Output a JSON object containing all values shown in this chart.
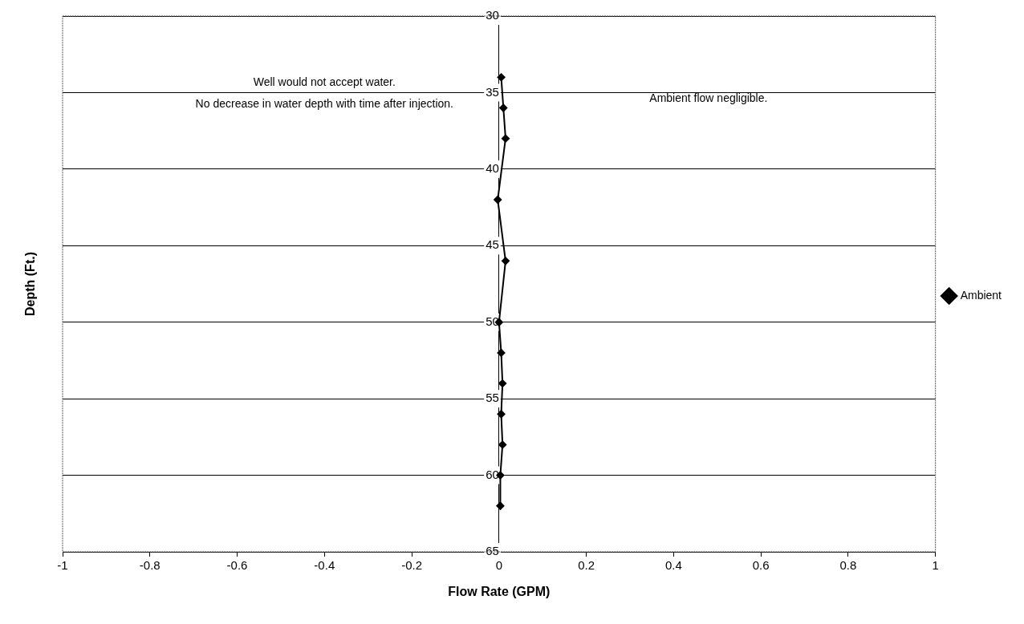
{
  "chart_data": {
    "type": "line",
    "xlabel": "Flow Rate (GPM)",
    "ylabel": "Depth (Ft.)",
    "series": [
      {
        "name": "Ambient",
        "color": "#000000",
        "x": [
          0.005,
          0.01,
          0.015,
          -0.003,
          0.015,
          0,
          0.005,
          0.008,
          0.005,
          0.008,
          0.003,
          0.003
        ],
        "values": [
          34,
          36,
          38,
          42,
          46,
          50,
          52,
          54,
          56,
          58,
          60,
          62
        ]
      }
    ],
    "xlim": [
      -1,
      1
    ],
    "xticks": [
      -1,
      -0.8,
      -0.6,
      -0.4,
      -0.2,
      0,
      0.2,
      0.4,
      0.6,
      0.8,
      1
    ],
    "ylim": [
      65,
      30
    ],
    "yticks": [
      30,
      35,
      40,
      45,
      50,
      55,
      60,
      65
    ],
    "grid": "y",
    "legend": "right",
    "marker": "diamond",
    "line_style": "solid",
    "annotations": [
      "Well would not accept water.",
      "No decrease in water depth with time after injection.",
      "Ambient flow negligible."
    ]
  }
}
